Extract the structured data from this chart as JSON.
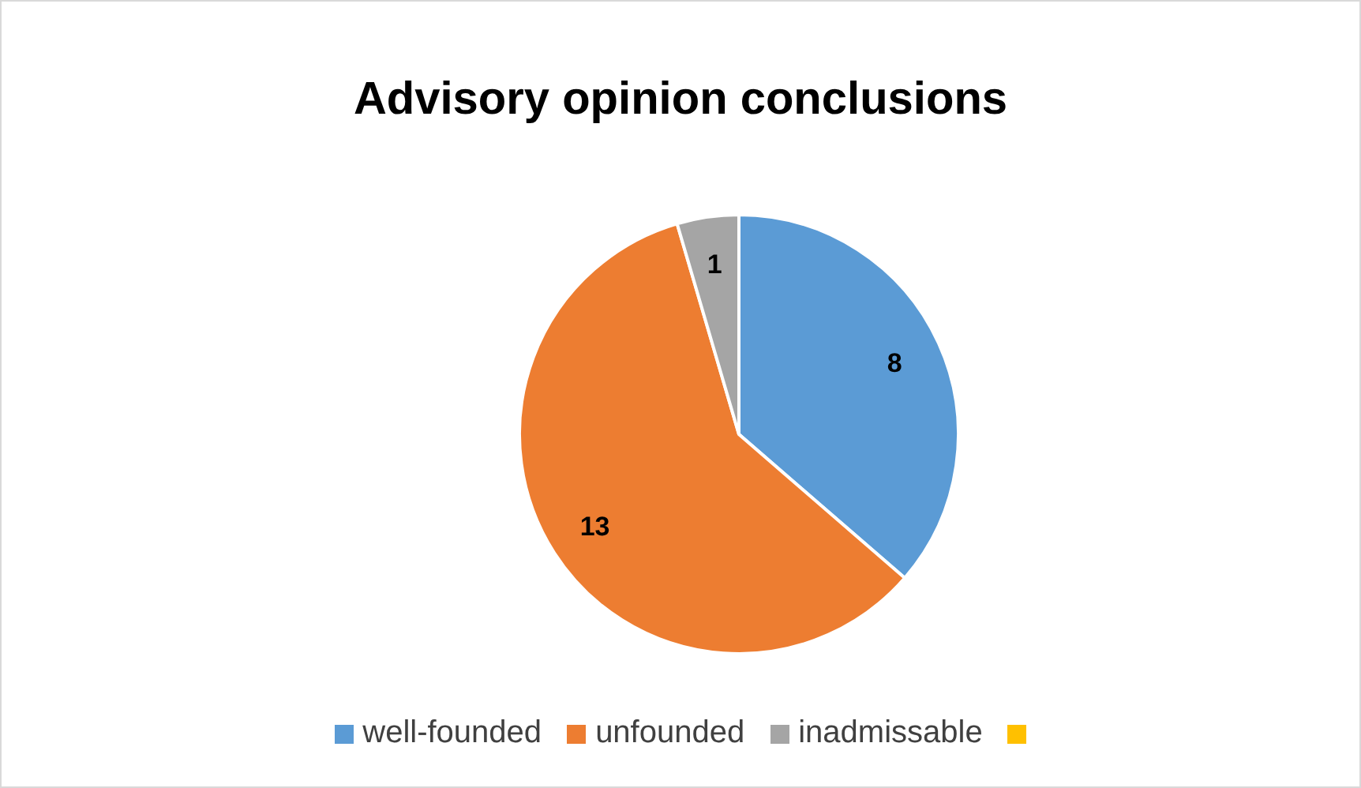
{
  "chart_data": {
    "type": "pie",
    "title": "Advisory opinion conclusions",
    "categories": [
      "well-founded",
      "unfounded",
      "inadmissable",
      null
    ],
    "values": [
      8,
      13,
      1,
      null
    ],
    "colors": [
      "#5b9bd5",
      "#ed7d31",
      "#a5a5a5",
      "#ffc000"
    ],
    "data_labels": true,
    "legend": "bottom"
  }
}
